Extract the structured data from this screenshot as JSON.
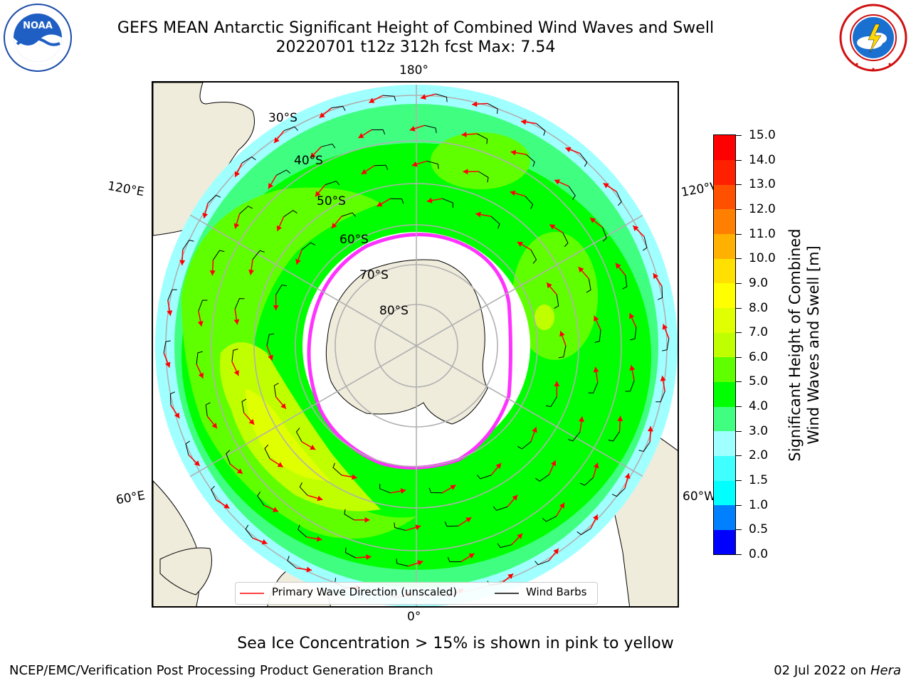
{
  "title": {
    "line1": "GEFS MEAN Antarctic Significant Height of Combined Wind Waves and Swell",
    "line2": "20220701 t12z 312h fcst   Max: 7.54"
  },
  "logos": {
    "noaa_text": "NOAA",
    "noaa_ring": "NATIONAL OCEANIC AND ATMOSPHERIC ADMINISTRATION · U.S. DEPARTMENT OF COMMERCE",
    "nws_ring": "NATIONAL WEATHER SERVICE"
  },
  "map": {
    "projection": "south-polar-stereographic",
    "longitude_labels": {
      "top": "180°",
      "bottom": "0°",
      "upper_left": "120°E",
      "upper_right": "120°W",
      "lower_left": "60°E",
      "lower_right": "60°W"
    },
    "latitude_labels": [
      "30°S",
      "40°S",
      "50°S",
      "60°S",
      "70°S",
      "80°S"
    ],
    "colors": {
      "land": "#efecdc",
      "ocean_background": "#ffffff",
      "sea_ice": "#ff33ff",
      "wave_arrow": "#ff0000",
      "barb": "#000000",
      "grid": "#b0b0b0"
    }
  },
  "colorbar": {
    "label": "Significant Height of Combined Wind Waves and Swell [m]",
    "label_line1": "Significant Height of Combined",
    "label_line2": "Wind Waves and Swell [m]",
    "ticks": [
      "0.0",
      "0.5",
      "1.0",
      "1.5",
      "2.0",
      "3.0",
      "4.0",
      "5.0",
      "6.0",
      "7.0",
      "8.0",
      "9.0",
      "10.0",
      "11.0",
      "12.0",
      "13.0",
      "14.0",
      "15.0"
    ],
    "colors": [
      "#0000ff",
      "#0080ff",
      "#00ffff",
      "#40ffff",
      "#a0ffff",
      "#40ff80",
      "#00ff00",
      "#60ff00",
      "#c0ff00",
      "#e0ff00",
      "#ffff00",
      "#ffe000",
      "#ffb000",
      "#ff8000",
      "#ff5000",
      "#ff2000",
      "#ff0000"
    ]
  },
  "legend": {
    "wave_direction": "Primary Wave Direction (unscaled)",
    "wind_barbs": "Wind Barbs"
  },
  "note": "Sea Ice Concentration > 15% is shown in pink to yellow",
  "footer": {
    "left": "NCEP/EMC/Verification Post Processing Product Generation Branch",
    "right_date": "02 Jul 2022 on ",
    "right_host": "Hera"
  }
}
